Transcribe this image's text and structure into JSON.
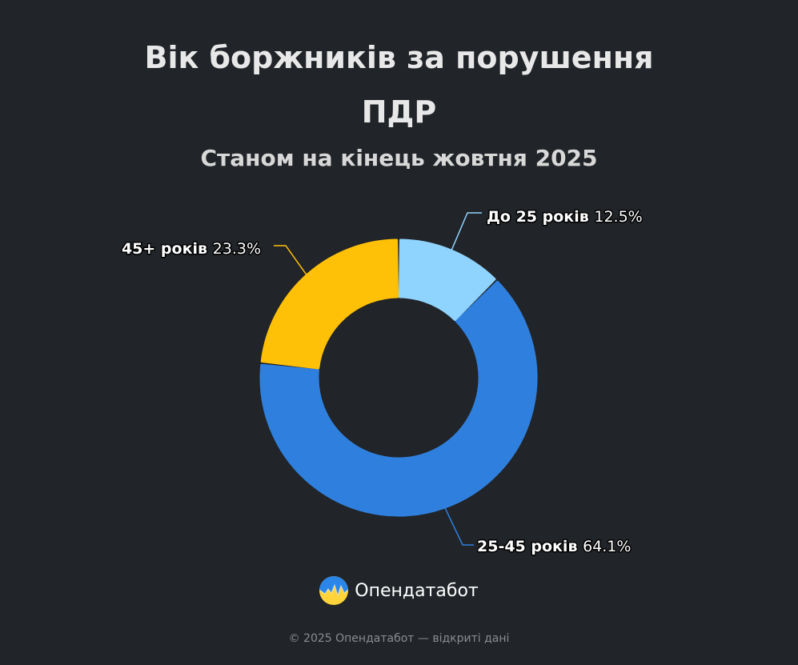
{
  "header": {
    "title_line_1": "Вік боржників за порушення",
    "title_line_2": "ПДР",
    "subtitle": "Станом на кінець жовтня 2025"
  },
  "chart_data": {
    "type": "pie",
    "variant": "donut",
    "title": "Вік боржників за порушення ПДР",
    "subtitle": "Станом на кінець жовтня 2025",
    "unit": "%",
    "slices": [
      {
        "label": "До 25 років",
        "value": 12.5,
        "value_label": "12.5%",
        "color": "#8fd3ff"
      },
      {
        "label": "25-45 років",
        "value": 64.1,
        "value_label": "64.1%",
        "color": "#2f80de"
      },
      {
        "label": "45+ років",
        "value": 23.3,
        "value_label": "23.3%",
        "color": "#ffc107"
      }
    ],
    "legend": "none",
    "data_labels": "outside"
  },
  "brand": {
    "name": "Опендатабот",
    "logo_icon": "opendatabot-logo-icon",
    "logo_colors": [
      "#1f7ee0",
      "#ffd43b"
    ]
  },
  "footer": {
    "text": "© 2025 Опендатабот — відкриті дані"
  },
  "theme": {
    "background": "#212428"
  }
}
